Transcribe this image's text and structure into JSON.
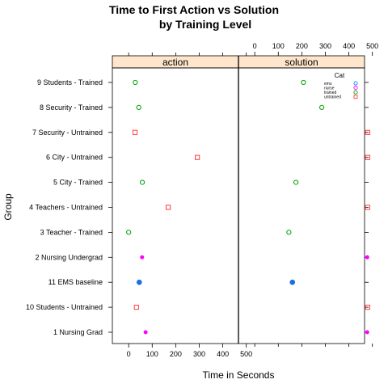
{
  "chart_data": {
    "type": "scatter",
    "title_line1": "Time to First Action vs Solution",
    "title_line2": "by Training Level",
    "xlabel": "Time in Seconds",
    "ylabel": "Group",
    "xlim": [
      -35,
      520
    ],
    "x_ticks": [
      0,
      100,
      200,
      300,
      400,
      500
    ],
    "panels": [
      "action",
      "solution"
    ],
    "groups": [
      "1 Nursing Grad",
      "10 Students - Untrained",
      "11  EMS baseline",
      "2 Nursing Undergrad",
      "3 Teacher - Trained",
      "4 Teachers - Untrained",
      "5 City - Trained",
      "6 City - Untrained",
      "7 Security - Untrained",
      "8 Security - Trained",
      "9 Students - Trained"
    ],
    "legend": {
      "title": "Cat",
      "items": [
        {
          "name": "ems",
          "color": "#0080ff",
          "shape": "circle"
        },
        {
          "name": "nurse",
          "color": "#ff00ff",
          "shape": "circle"
        },
        {
          "name": "trained",
          "color": "#00a000",
          "shape": "circle"
        },
        {
          "name": "untrained",
          "color": "#ff4040",
          "shape": "square"
        }
      ],
      "position": "top-right"
    },
    "series": [
      {
        "name": "ems",
        "color": "#1d6ee0",
        "shape": "circle-filled",
        "points": [
          {
            "group": "11  EMS baseline",
            "panel": "action",
            "x": 45
          },
          {
            "group": "11  EMS baseline",
            "panel": "solution",
            "x": 160
          }
        ]
      },
      {
        "name": "nurse",
        "color": "#ff00ff",
        "shape": "circle-filled-small",
        "points": [
          {
            "group": "1 Nursing Grad",
            "panel": "action",
            "x": 72
          },
          {
            "group": "1 Nursing Grad",
            "panel": "solution",
            "x": 478
          },
          {
            "group": "2 Nursing Undergrad",
            "panel": "action",
            "x": 57
          },
          {
            "group": "2 Nursing Undergrad",
            "panel": "solution",
            "x": 478
          }
        ]
      },
      {
        "name": "trained",
        "color": "#00a000",
        "shape": "circle",
        "points": [
          {
            "group": "3 Teacher - Trained",
            "panel": "action",
            "x": 0
          },
          {
            "group": "3 Teacher - Trained",
            "panel": "solution",
            "x": 145
          },
          {
            "group": "5 City - Trained",
            "panel": "action",
            "x": 58
          },
          {
            "group": "5 City - Trained",
            "panel": "solution",
            "x": 175
          },
          {
            "group": "8 Security - Trained",
            "panel": "action",
            "x": 43
          },
          {
            "group": "8 Security - Trained",
            "panel": "solution",
            "x": 285
          },
          {
            "group": "9 Students - Trained",
            "panel": "action",
            "x": 28
          },
          {
            "group": "9 Students - Trained",
            "panel": "solution",
            "x": 207
          }
        ]
      },
      {
        "name": "untrained",
        "color": "#ff4040",
        "shape": "square",
        "points": [
          {
            "group": "10 Students - Untrained",
            "panel": "action",
            "x": 33
          },
          {
            "group": "10 Students - Untrained",
            "panel": "solution",
            "x": 480
          },
          {
            "group": "4 Teachers - Untrained",
            "panel": "action",
            "x": 168
          },
          {
            "group": "4 Teachers - Untrained",
            "panel": "solution",
            "x": 480
          },
          {
            "group": "6 City - Untrained",
            "panel": "action",
            "x": 292
          },
          {
            "group": "6 City - Untrained",
            "panel": "solution",
            "x": 480
          },
          {
            "group": "7 Security - Untrained",
            "panel": "action",
            "x": 27
          },
          {
            "group": "7 Security - Untrained",
            "panel": "solution",
            "x": 480
          }
        ]
      }
    ],
    "grid": false
  }
}
